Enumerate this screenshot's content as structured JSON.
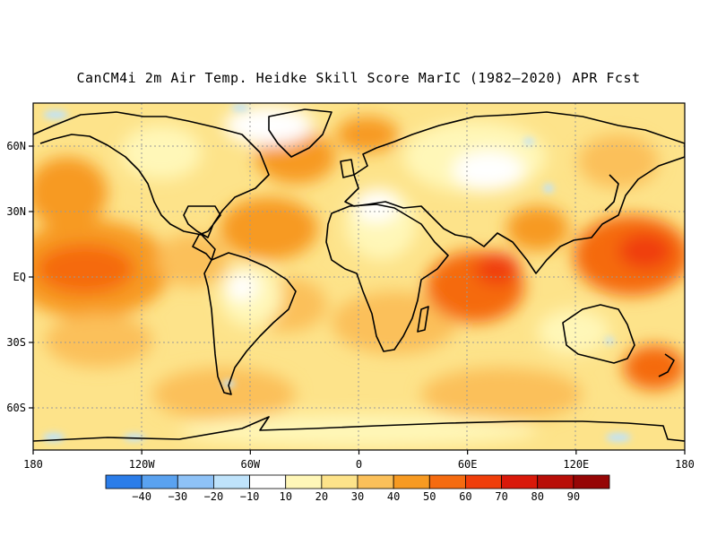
{
  "title": "CanCM4i 2m Air Temp. Heidke Skill Score MarIC (1982–2020) APR Fcst",
  "map": {
    "x_ticks": [
      "180",
      "120W",
      "60W",
      "0",
      "60E",
      "120E",
      "180"
    ],
    "y_ticks": [
      "60N",
      "30N",
      "EQ",
      "30S",
      "60S"
    ]
  },
  "colorbar": {
    "labels": [
      "−40",
      "−30",
      "−20",
      "−10",
      "10",
      "20",
      "30",
      "40",
      "50",
      "60",
      "70",
      "80",
      "90"
    ],
    "colors": [
      "#2b7de9",
      "#5aa2f0",
      "#8ec2f7",
      "#bfe3fb",
      "#ffffff",
      "#fff7b8",
      "#fde38a",
      "#fbc05a",
      "#f79a22",
      "#f56b10",
      "#f03e0a",
      "#d9190a",
      "#b80e08",
      "#960606"
    ]
  }
}
